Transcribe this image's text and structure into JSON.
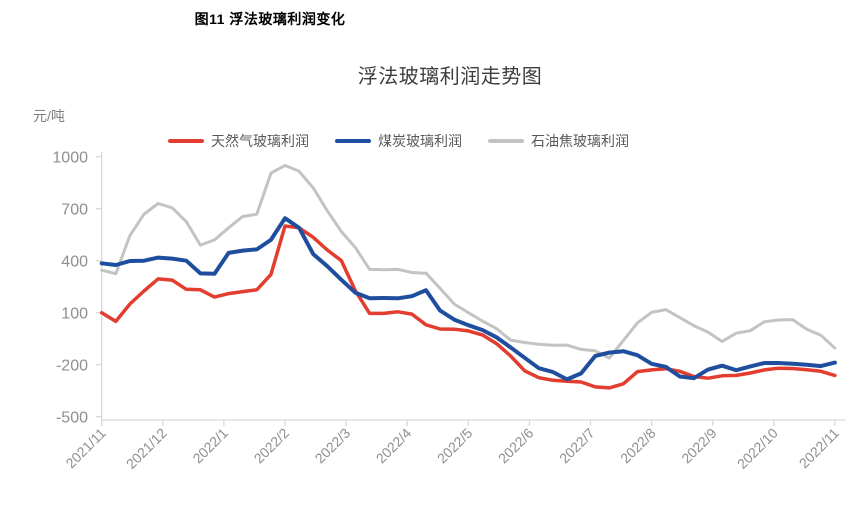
{
  "figure_caption": "图11 浮法玻璃利润变化",
  "chart_data": {
    "type": "line",
    "title": "浮法玻璃利润走势图",
    "y_unit": "元/吨",
    "xlabel": "",
    "ylabel": "元/吨",
    "grid": false,
    "legend_position": "top",
    "ylim": [
      -500,
      1000
    ],
    "y_ticks": [
      1000,
      700,
      400,
      100,
      -200,
      -500
    ],
    "x_tick_labels": [
      "2021/11",
      "2021/12",
      "2022/1",
      "2022/2",
      "2022/3",
      "2022/4",
      "2022/5",
      "2022/6",
      "2022/7",
      "2022/8",
      "2022/9",
      "2022/10",
      "2022/11"
    ],
    "x_sampling": "weekly, 53 points from 2021/11 to 2022/11",
    "axis_color": "#d9d9d9",
    "tick_label_color": "#8f8f8f",
    "series": [
      {
        "name": "天然气玻璃利润",
        "color": "#e23d2e",
        "values": [
          100,
          50,
          150,
          225,
          295,
          288,
          235,
          232,
          190,
          210,
          222,
          232,
          320,
          600,
          590,
          535,
          462,
          400,
          225,
          96,
          96,
          105,
          92,
          30,
          6,
          5,
          -5,
          -28,
          -78,
          -150,
          -235,
          -275,
          -290,
          -296,
          -300,
          -328,
          -334,
          -310,
          -240,
          -230,
          -223,
          -238,
          -268,
          -278,
          -264,
          -262,
          -248,
          -230,
          -220,
          -222,
          -229,
          -238,
          -262
        ]
      },
      {
        "name": "煤炭玻璃利润",
        "color": "#1f4e9f",
        "values": [
          385,
          375,
          398,
          400,
          418,
          412,
          400,
          327,
          325,
          445,
          458,
          465,
          520,
          645,
          590,
          438,
          368,
          290,
          215,
          183,
          185,
          183,
          195,
          230,
          112,
          60,
          28,
          0,
          -42,
          -100,
          -160,
          -220,
          -242,
          -285,
          -250,
          -150,
          -130,
          -122,
          -145,
          -195,
          -212,
          -268,
          -278,
          -228,
          -206,
          -232,
          -210,
          -190,
          -190,
          -194,
          -200,
          -208,
          -188
        ]
      },
      {
        "name": "石油焦玻璃利润",
        "color": "#c3c3c3",
        "values": [
          345,
          325,
          545,
          668,
          730,
          705,
          625,
          490,
          520,
          590,
          655,
          668,
          905,
          950,
          916,
          820,
          688,
          568,
          475,
          350,
          348,
          350,
          332,
          328,
          240,
          150,
          100,
          52,
          8,
          -58,
          -72,
          -82,
          -88,
          -87,
          -112,
          -120,
          -162,
          -60,
          42,
          102,
          118,
          72,
          25,
          -12,
          -66,
          -18,
          -4,
          48,
          58,
          60,
          5,
          -30,
          -105
        ]
      }
    ]
  }
}
